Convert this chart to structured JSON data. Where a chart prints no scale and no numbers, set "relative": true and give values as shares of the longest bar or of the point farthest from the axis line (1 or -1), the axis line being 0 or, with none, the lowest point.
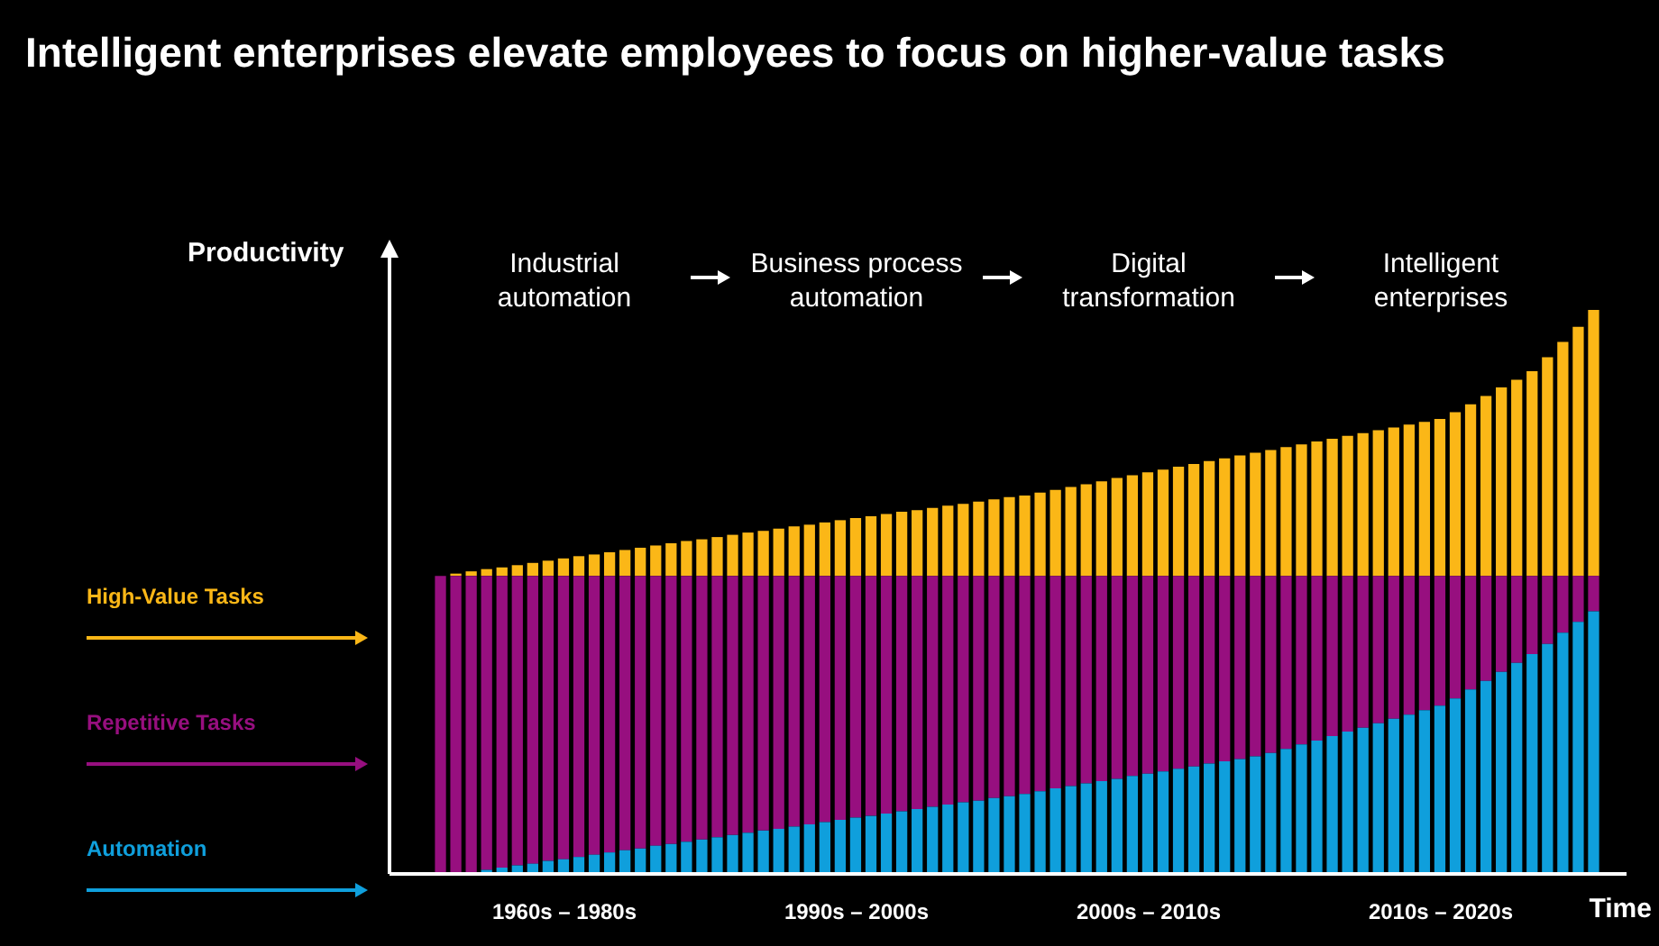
{
  "chart_data": {
    "type": "bar",
    "title": "Intelligent enterprises elevate employees to focus on higher-value tasks",
    "xlabel": "Time",
    "ylabel": "Productivity",
    "relative": true,
    "stacked": true,
    "legend": "left",
    "tick_labels": false,
    "categories": [
      null,
      null,
      null,
      null,
      null,
      null,
      null,
      null,
      null,
      null,
      null,
      null,
      null,
      null,
      null,
      null,
      null,
      null,
      null,
      null,
      null,
      null,
      null,
      null,
      null,
      null,
      null,
      null,
      null,
      null,
      null,
      null,
      null,
      null,
      null,
      null,
      null,
      null,
      null,
      null,
      null,
      null,
      null,
      null,
      null,
      null,
      null,
      null,
      null,
      null,
      null,
      null,
      null,
      null,
      null,
      null,
      null,
      null,
      null,
      null,
      null,
      null,
      null,
      null,
      null,
      null,
      null,
      null,
      null,
      null,
      null,
      null,
      null,
      null,
      null,
      null
    ],
    "annotations": [
      "Industrial automation",
      "Business process automation",
      "Digital transformation",
      "Intelligent enterprises",
      "1960s – 1980s",
      "1990s – 2000s",
      "2000s – 2010s",
      "2010s – 2020s"
    ],
    "series": [
      {
        "name": "Automation",
        "color": "#0f9fdc",
        "values": [
          0,
          0,
          0,
          0.004,
          0.008,
          0.012,
          0.015,
          0.02,
          0.023,
          0.027,
          0.031,
          0.035,
          0.039,
          0.042,
          0.047,
          0.05,
          0.054,
          0.058,
          0.062,
          0.066,
          0.07,
          0.074,
          0.077,
          0.081,
          0.085,
          0.089,
          0.093,
          0.097,
          0.1,
          0.104,
          0.108,
          0.112,
          0.116,
          0.12,
          0.124,
          0.127,
          0.132,
          0.135,
          0.139,
          0.144,
          0.149,
          0.153,
          0.158,
          0.162,
          0.166,
          0.171,
          0.175,
          0.179,
          0.184,
          0.188,
          0.193,
          0.197,
          0.201,
          0.206,
          0.212,
          0.219,
          0.227,
          0.234,
          0.242,
          0.25,
          0.257,
          0.265,
          0.273,
          0.28,
          0.288,
          0.296,
          0.309,
          0.325,
          0.34,
          0.356,
          0.372,
          0.388,
          0.406,
          0.426,
          0.445,
          0.464
        ]
      },
      {
        "name": "Repetitive Tasks",
        "color": "#970f7f",
        "values": [
          0.527,
          0.527,
          0.527,
          0.523,
          0.519,
          0.515,
          0.512,
          0.507,
          0.504,
          0.5,
          0.496,
          0.492,
          0.488,
          0.485,
          0.48,
          0.477,
          0.473,
          0.469,
          0.465,
          0.461,
          0.457,
          0.453,
          0.45,
          0.446,
          0.442,
          0.438,
          0.434,
          0.43,
          0.427,
          0.423,
          0.419,
          0.415,
          0.411,
          0.407,
          0.403,
          0.4,
          0.395,
          0.392,
          0.388,
          0.383,
          0.378,
          0.374,
          0.369,
          0.365,
          0.361,
          0.356,
          0.352,
          0.348,
          0.343,
          0.339,
          0.334,
          0.33,
          0.326,
          0.321,
          0.315,
          0.308,
          0.3,
          0.293,
          0.285,
          0.277,
          0.27,
          0.262,
          0.254,
          0.247,
          0.239,
          0.231,
          0.218,
          0.202,
          0.187,
          0.171,
          0.155,
          0.139,
          0.121,
          0.101,
          0.082,
          0.063
        ]
      },
      {
        "name": "High-Value Tasks",
        "color": "#fbb717",
        "values": [
          0,
          0.004,
          0.008,
          0.012,
          0.015,
          0.019,
          0.023,
          0.027,
          0.031,
          0.035,
          0.038,
          0.042,
          0.046,
          0.05,
          0.054,
          0.058,
          0.062,
          0.065,
          0.069,
          0.073,
          0.077,
          0.08,
          0.084,
          0.088,
          0.091,
          0.095,
          0.099,
          0.103,
          0.106,
          0.11,
          0.114,
          0.117,
          0.121,
          0.125,
          0.128,
          0.132,
          0.136,
          0.14,
          0.143,
          0.148,
          0.153,
          0.158,
          0.163,
          0.168,
          0.174,
          0.179,
          0.184,
          0.189,
          0.194,
          0.199,
          0.204,
          0.209,
          0.214,
          0.219,
          0.224,
          0.229,
          0.234,
          0.239,
          0.244,
          0.249,
          0.254,
          0.259,
          0.264,
          0.269,
          0.274,
          0.279,
          0.291,
          0.305,
          0.32,
          0.335,
          0.349,
          0.364,
          0.389,
          0.416,
          0.443,
          0.473
        ]
      }
    ]
  }
}
